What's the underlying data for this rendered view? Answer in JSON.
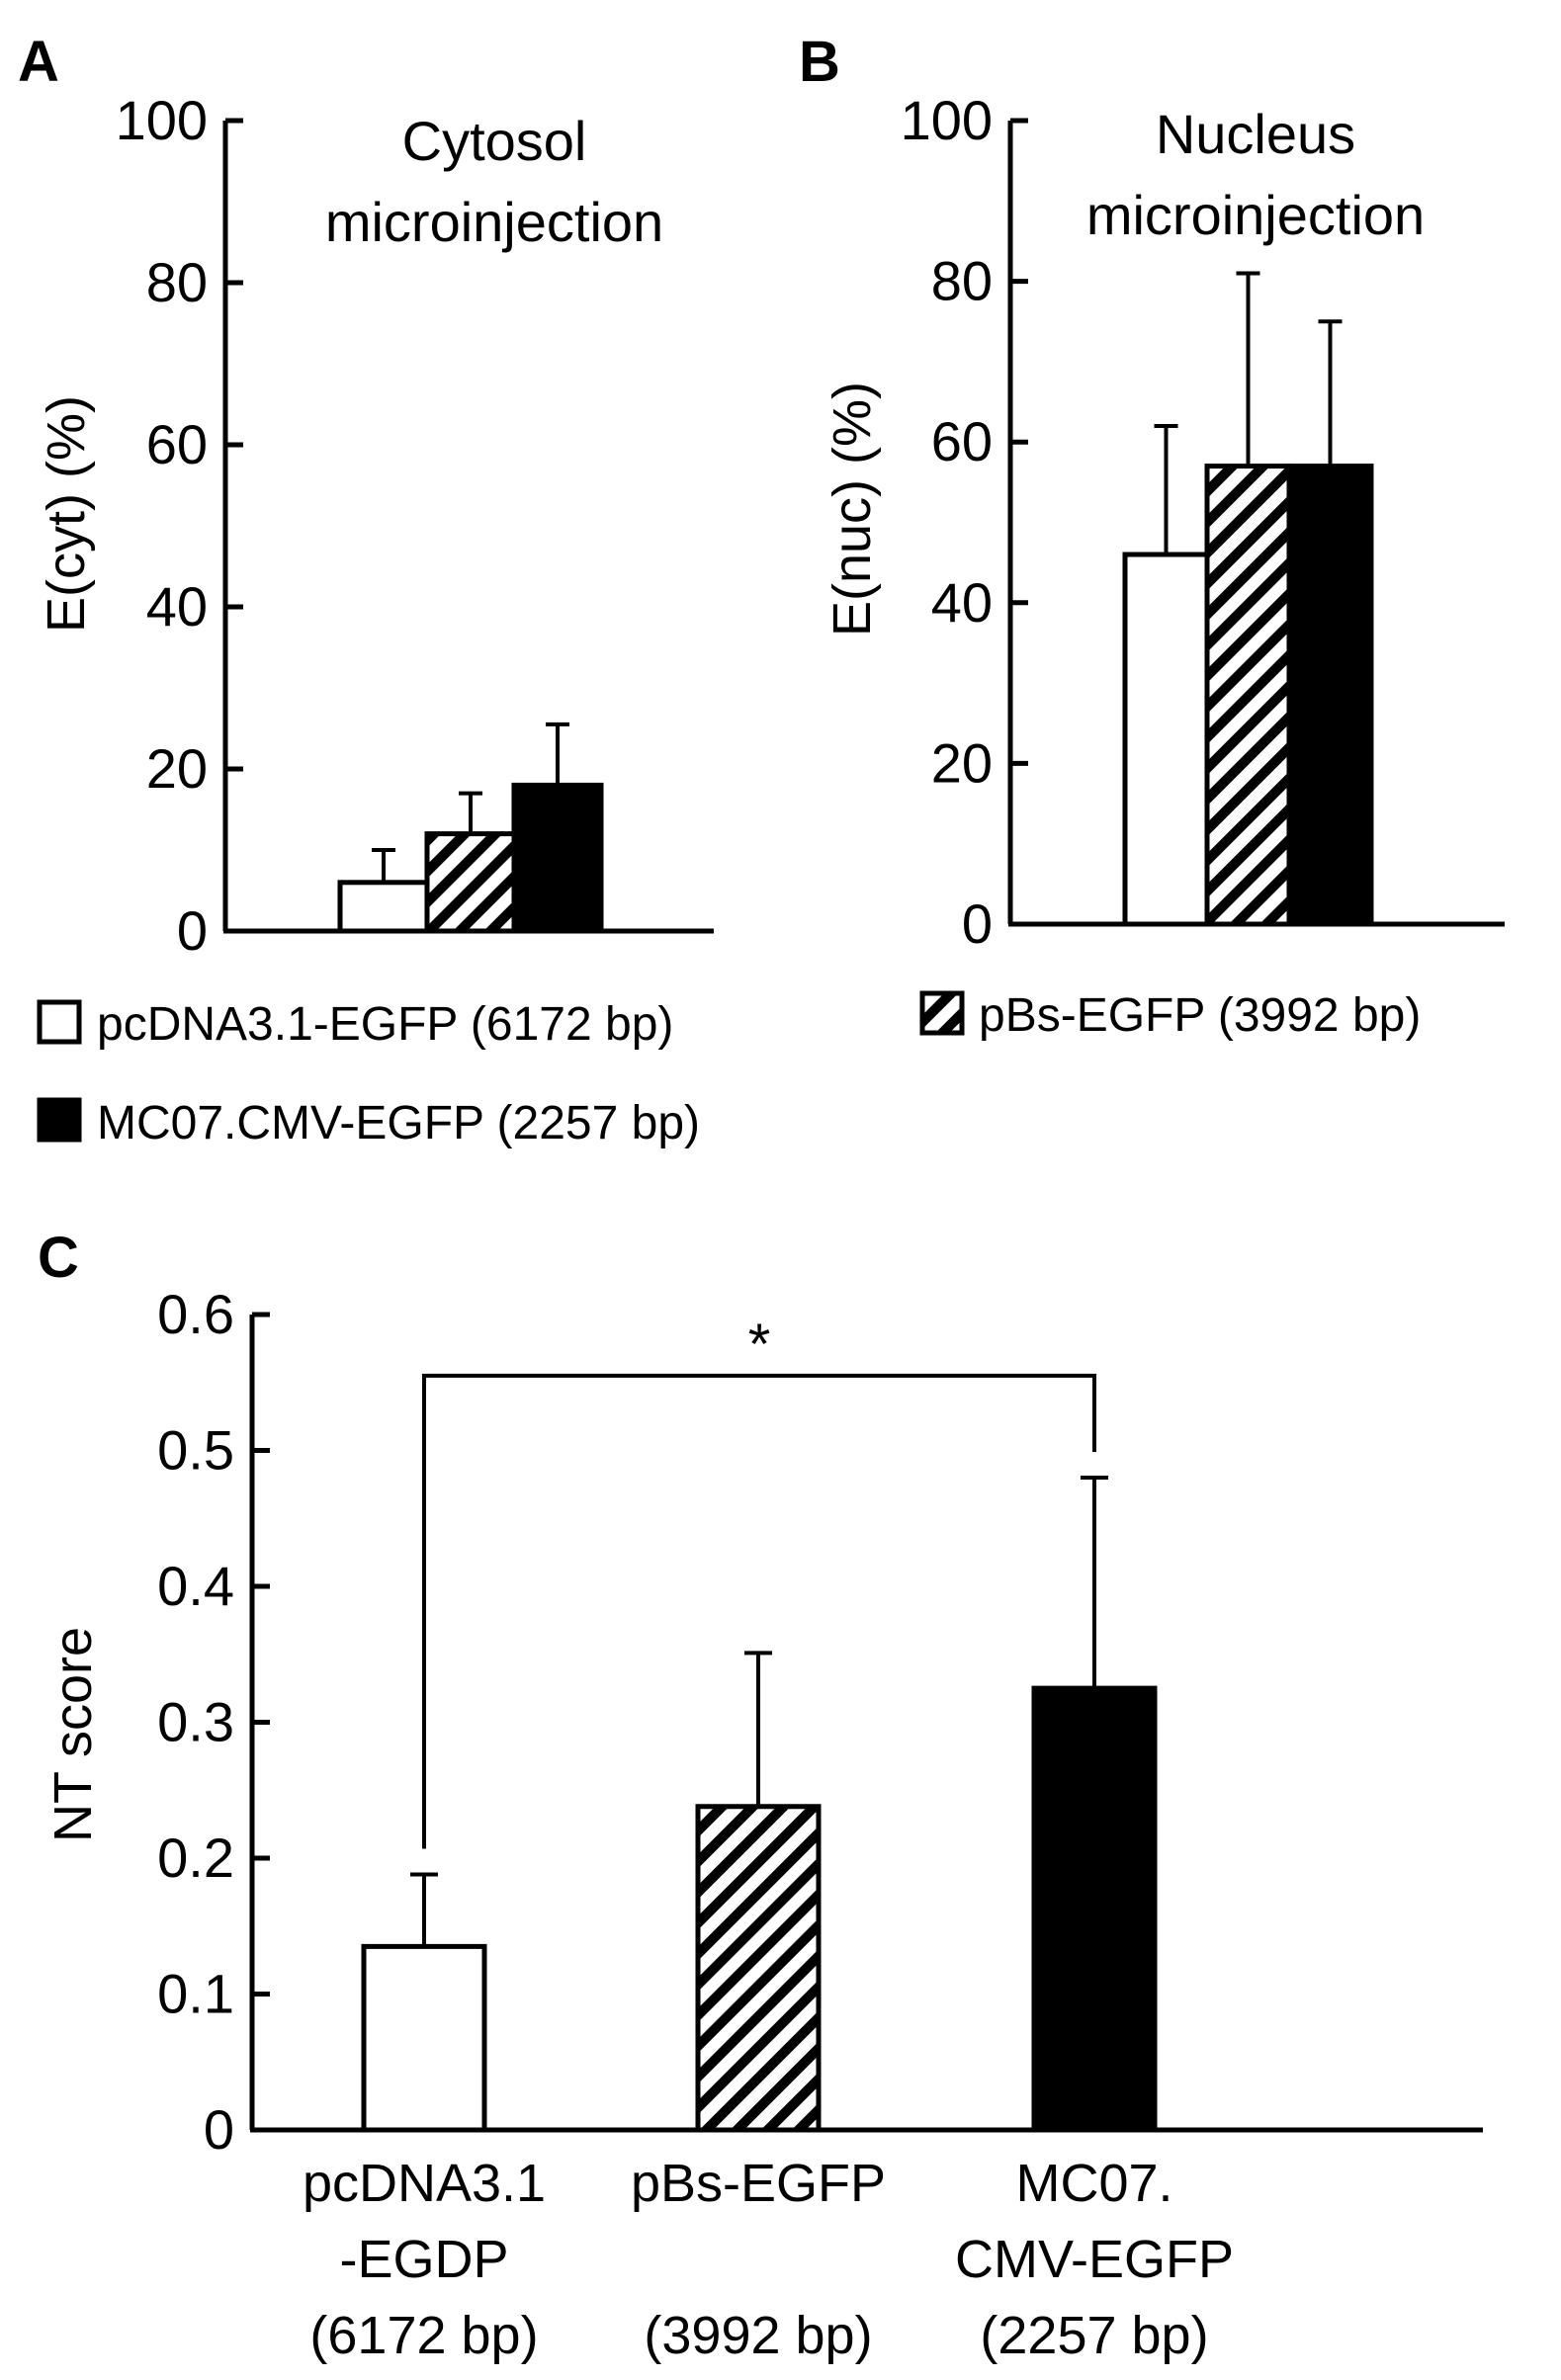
{
  "colors": {
    "ink": "#000000",
    "open_fill": "#ffffff",
    "solid_fill": "#000000"
  },
  "legend": [
    {
      "label": "pcDNA3.1-EGFP (6172 bp)",
      "pattern": "open"
    },
    {
      "label": "pBs-EGFP (3992 bp)",
      "pattern": "hatched"
    },
    {
      "label": "MC07.CMV-EGFP (2257 bp)",
      "pattern": "solid"
    }
  ],
  "chart_data": [
    {
      "panel": "A",
      "type": "bar",
      "title_lines": [
        "Cytosol",
        "microinjection"
      ],
      "ylabel": "E(cyt) (%)",
      "ylim": [
        0,
        100
      ],
      "yticks": [
        0,
        20,
        40,
        60,
        80,
        100
      ],
      "ytick_labels": [
        "0",
        "20",
        "40",
        "60",
        "80",
        "100"
      ],
      "categories": [
        "pcDNA3.1-EGFP (6172 bp)",
        "pBs-EGFP (3992 bp)",
        "MC07.CMV-EGFP (2257 bp)"
      ],
      "patterns": [
        "open",
        "hatched",
        "solid"
      ],
      "values": [
        6,
        12,
        18
      ],
      "errors": [
        4,
        5,
        7.5
      ]
    },
    {
      "panel": "B",
      "type": "bar",
      "title_lines": [
        "Nucleus",
        "microinjection"
      ],
      "ylabel": "E(nuc) (%)",
      "ylim": [
        0,
        100
      ],
      "yticks": [
        0,
        20,
        40,
        60,
        80,
        100
      ],
      "ytick_labels": [
        "0",
        "20",
        "40",
        "60",
        "80",
        "100"
      ],
      "categories": [
        "pcDNA3.1-EGFP (6172 bp)",
        "pBs-EGFP (3992 bp)",
        "MC07.CMV-EGFP (2257 bp)"
      ],
      "patterns": [
        "open",
        "hatched",
        "solid"
      ],
      "values": [
        46,
        57,
        57
      ],
      "errors": [
        16,
        24,
        18
      ]
    },
    {
      "panel": "C",
      "type": "bar",
      "ylabel": "NT score",
      "ylim": [
        0,
        0.6
      ],
      "yticks": [
        0,
        0.1,
        0.2,
        0.3,
        0.4,
        0.5,
        0.6
      ],
      "ytick_labels": [
        "0",
        "0.1",
        "0.2",
        "0.3",
        "0.4",
        "0.5",
        "0.6"
      ],
      "categories": [
        "pcDNA3.1 -EGDP (6172 bp)",
        "pBs-EGFP (3992 bp)",
        "MC07. CMV-EGFP (2257 bp)"
      ],
      "category_lines": [
        [
          "pcDNA3.1",
          "-EGDP",
          "(6172 bp)"
        ],
        [
          "pBs-EGFP",
          "",
          "(3992 bp)"
        ],
        [
          "MC07.",
          "CMV-EGFP",
          "(2257 bp)"
        ]
      ],
      "patterns": [
        "open",
        "hatched",
        "solid"
      ],
      "values": [
        0.135,
        0.238,
        0.325
      ],
      "errors": [
        0.053,
        0.113,
        0.155
      ],
      "significance": {
        "from": 0,
        "to": 2,
        "label": "*",
        "y": 0.555
      }
    }
  ]
}
